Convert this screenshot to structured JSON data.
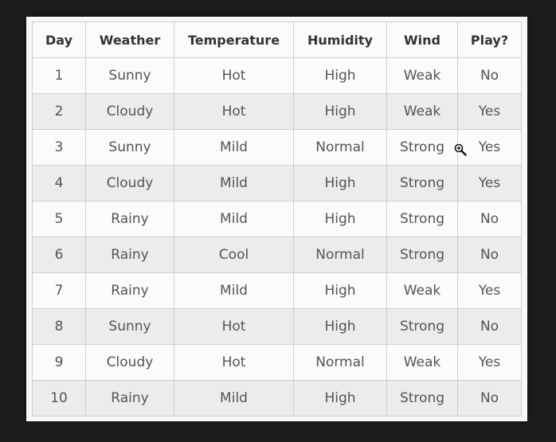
{
  "table": {
    "headers": [
      "Day",
      "Weather",
      "Temperature",
      "Humidity",
      "Wind",
      "Play?"
    ],
    "rows": [
      [
        "1",
        "Sunny",
        "Hot",
        "High",
        "Weak",
        "No"
      ],
      [
        "2",
        "Cloudy",
        "Hot",
        "High",
        "Weak",
        "Yes"
      ],
      [
        "3",
        "Sunny",
        "Mild",
        "Normal",
        "Strong",
        "Yes"
      ],
      [
        "4",
        "Cloudy",
        "Mild",
        "High",
        "Strong",
        "Yes"
      ],
      [
        "5",
        "Rainy",
        "Mild",
        "High",
        "Strong",
        "No"
      ],
      [
        "6",
        "Rainy",
        "Cool",
        "Normal",
        "Strong",
        "No"
      ],
      [
        "7",
        "Rainy",
        "Mild",
        "High",
        "Weak",
        "Yes"
      ],
      [
        "8",
        "Sunny",
        "Hot",
        "High",
        "Strong",
        "No"
      ],
      [
        "9",
        "Cloudy",
        "Hot",
        "Normal",
        "Weak",
        "Yes"
      ],
      [
        "10",
        "Rainy",
        "Mild",
        "High",
        "Strong",
        "No"
      ]
    ]
  },
  "cursor": {
    "icon": "zoom-in-icon"
  }
}
